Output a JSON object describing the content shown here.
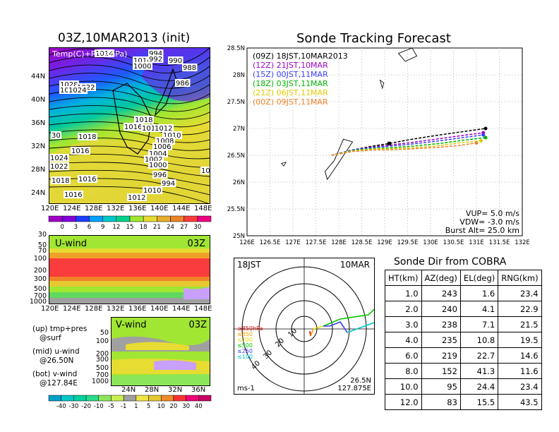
{
  "left_title": "03Z,10MAR2013 (init)",
  "right_title": "Sonde Tracking Forecast",
  "map": {
    "overlay_label": "Temp(C)+Pres(hPa)",
    "x_ticks": [
      "120E",
      "124E",
      "128E",
      "132E",
      "136E",
      "140E",
      "144E",
      "148E"
    ],
    "y_ticks": [
      "24N",
      "28N",
      "32N",
      "36N",
      "40N",
      "44N"
    ],
    "isobar_labels": [
      "1014",
      "1014",
      "1000",
      "994",
      "992",
      "990",
      "988",
      "986",
      "1028",
      "1026",
      "1022",
      "1024",
      "1018",
      "1016",
      "1016",
      "1012",
      "1010",
      "1008",
      "1006",
      "1004",
      "1002",
      "1000",
      "996",
      "994",
      "1010",
      "1012",
      "1014",
      "1016",
      "1018",
      "1018",
      "1016",
      "1016",
      "1024",
      "1022",
      "1018",
      "1016",
      "30",
      "101"
    ]
  },
  "temp_colorbar": {
    "ticks": [
      "0",
      "3",
      "6",
      "9",
      "12",
      "15",
      "18",
      "21",
      "24",
      "27",
      "30"
    ],
    "colors": [
      "#a000c8",
      "#8200dc",
      "#1e3cff",
      "#00a0ff",
      "#00c8c8",
      "#00d28c",
      "#a0e632",
      "#e6dc32",
      "#e6af2d",
      "#f08228",
      "#fa3c3c",
      "#f00082"
    ]
  },
  "uwind": {
    "title": "U-wind",
    "time": "03Z",
    "y_ticks": [
      "30",
      "50",
      "70",
      "100",
      "200",
      "300",
      "500",
      "700",
      "1000"
    ],
    "x_ticks": [
      "120E",
      "124E",
      "128E",
      "132E",
      "136E",
      "140E",
      "144E",
      "148E"
    ]
  },
  "vwind": {
    "title": "V-wind",
    "time": "03Z",
    "y_ticks": [
      "50",
      "100",
      "200",
      "300",
      "500",
      "700",
      "1000"
    ],
    "x_ticks": [
      "24N",
      "28N",
      "32N",
      "36N"
    ]
  },
  "wind_colorbar": {
    "ticks": [
      "-40",
      "-30",
      "-20",
      "-10",
      "-5",
      "-1",
      "1",
      "5",
      "10",
      "20",
      "30",
      "40"
    ],
    "colors": [
      "#00a0c8",
      "#00c8c8",
      "#00d2a0",
      "#28dc8c",
      "#8ce65a",
      "#c8f050",
      "#a0a0a0",
      "#f0e646",
      "#e6c832",
      "#f08c28",
      "#fa3232",
      "#f00078",
      "#c80064"
    ]
  },
  "notes": [
    {
      "a": "(up) tmp+pres",
      "b": "@surf"
    },
    {
      "a": "(mid) u-wind",
      "b": "@26.50N"
    },
    {
      "a": "(bot) v-wind",
      "b": "@127.84E"
    }
  ],
  "track_legend": [
    {
      "code": "(09Z)",
      "text": "18JST,10MAR2013",
      "color": "#000000"
    },
    {
      "code": "(12Z)",
      "text": "21JST,10MAR",
      "color": "#a000c8"
    },
    {
      "code": "(15Z)",
      "text": "00JST,11MAR",
      "color": "#3c3cff"
    },
    {
      "code": "(18Z)",
      "text": "03JST,11MAR",
      "color": "#00b400"
    },
    {
      "code": "(21Z)",
      "text": "06JST,11MAR",
      "color": "#e6c800"
    },
    {
      "code": "(00Z)",
      "text": "09JST,11MAR",
      "color": "#f08228"
    }
  ],
  "track_params": [
    "VUP= 5.0 m/s",
    "VDW= -3.0 m/s",
    "Burst Alt= 25.0 km"
  ],
  "chart_data": {
    "type": "line",
    "title": "Sonde Tracking Forecast",
    "xlim": [
      126,
      132
    ],
    "ylim": [
      25,
      28.5
    ],
    "x_ticks": [
      "126E",
      "126.5E",
      "127E",
      "127.5E",
      "128E",
      "128.5E",
      "129E",
      "129.5E",
      "130E",
      "130.5E",
      "131E",
      "131.5E",
      "132E"
    ],
    "y_ticks": [
      "25N",
      "25.5N",
      "26N",
      "26.5N",
      "27N",
      "27.5N",
      "28N",
      "28.5N"
    ],
    "grid": true,
    "series": [
      {
        "name": "(09Z) 18JST,10MAR2013",
        "color": "#000000",
        "x": [
          127.84,
          128.3,
          128.8,
          129.1,
          129.6,
          130.2,
          130.7,
          131.2
        ],
        "y": [
          26.5,
          26.6,
          26.68,
          26.72,
          26.8,
          26.88,
          26.94,
          27.0
        ]
      },
      {
        "name": "(12Z) 21JST,10MAR",
        "color": "#a000c8",
        "x": [
          127.84,
          128.3,
          128.8,
          129.1,
          129.6,
          130.2,
          130.7,
          131.15
        ],
        "y": [
          26.5,
          26.6,
          26.66,
          26.69,
          26.74,
          26.81,
          26.87,
          26.92
        ]
      },
      {
        "name": "(15Z) 00JST,11MAR",
        "color": "#3c3cff",
        "x": [
          127.84,
          128.3,
          128.8,
          129.1,
          129.6,
          130.2,
          130.7,
          131.15
        ],
        "y": [
          26.5,
          26.6,
          26.65,
          26.67,
          26.71,
          26.77,
          26.83,
          26.88
        ]
      },
      {
        "name": "(18Z) 03JST,11MAR",
        "color": "#00b400",
        "x": [
          127.84,
          128.3,
          128.8,
          129.1,
          129.6,
          130.2,
          130.7,
          131.2
        ],
        "y": [
          26.5,
          26.59,
          26.63,
          26.64,
          26.67,
          26.72,
          26.78,
          26.83
        ]
      },
      {
        "name": "(21Z) 06JST,11MAR",
        "color": "#e6c800",
        "x": [
          127.84,
          128.3,
          128.8,
          129.1,
          129.6,
          130.2,
          130.6,
          131.1
        ],
        "y": [
          26.5,
          26.58,
          26.62,
          26.62,
          26.64,
          26.68,
          26.73,
          26.77
        ]
      },
      {
        "name": "(00Z) 09JST,11MAR",
        "color": "#f08228",
        "x": [
          127.84,
          128.3,
          128.8,
          129.1,
          129.6,
          130.2,
          130.6,
          131.0
        ],
        "y": [
          26.5,
          26.57,
          26.6,
          26.6,
          26.62,
          26.65,
          26.68,
          26.73
        ]
      }
    ]
  },
  "radar": {
    "time_label": "18JST",
    "date_label": "10MAR",
    "ring_labels": [
      "10",
      "20",
      "30",
      "40"
    ],
    "unit": "ms-1",
    "location": [
      "26.5N",
      "127.875E"
    ],
    "hpa_legend": [
      {
        "t": "≥850hPa",
        "c": "#e60000"
      },
      {
        "t": "≤850",
        "c": "#f0a000"
      },
      {
        "t": "≤700",
        "c": "#e6dc00"
      },
      {
        "t": "≤500",
        "c": "#00c800"
      },
      {
        "t": "≤250",
        "c": "#3c3cff"
      },
      {
        "t": "≤100",
        "c": "#00c8c8"
      }
    ]
  },
  "table": {
    "title": "Sonde Dir from COBRA",
    "headers": [
      "HT(km)",
      "AZ(deg)",
      "EL(deg)",
      "RNG(km)"
    ],
    "rows": [
      [
        "1.0",
        "243",
        "1.6",
        "23.4"
      ],
      [
        "2.0",
        "240",
        "4.1",
        "22.9"
      ],
      [
        "3.0",
        "238",
        "7.1",
        "21.5"
      ],
      [
        "4.0",
        "235",
        "10.8",
        "19.5"
      ],
      [
        "6.0",
        "219",
        "22.7",
        "14.6"
      ],
      [
        "8.0",
        "152",
        "41.3",
        "11.6"
      ],
      [
        "10.0",
        "95",
        "24.4",
        "23.4"
      ],
      [
        "12.0",
        "83",
        "15.5",
        "43.5"
      ]
    ]
  }
}
